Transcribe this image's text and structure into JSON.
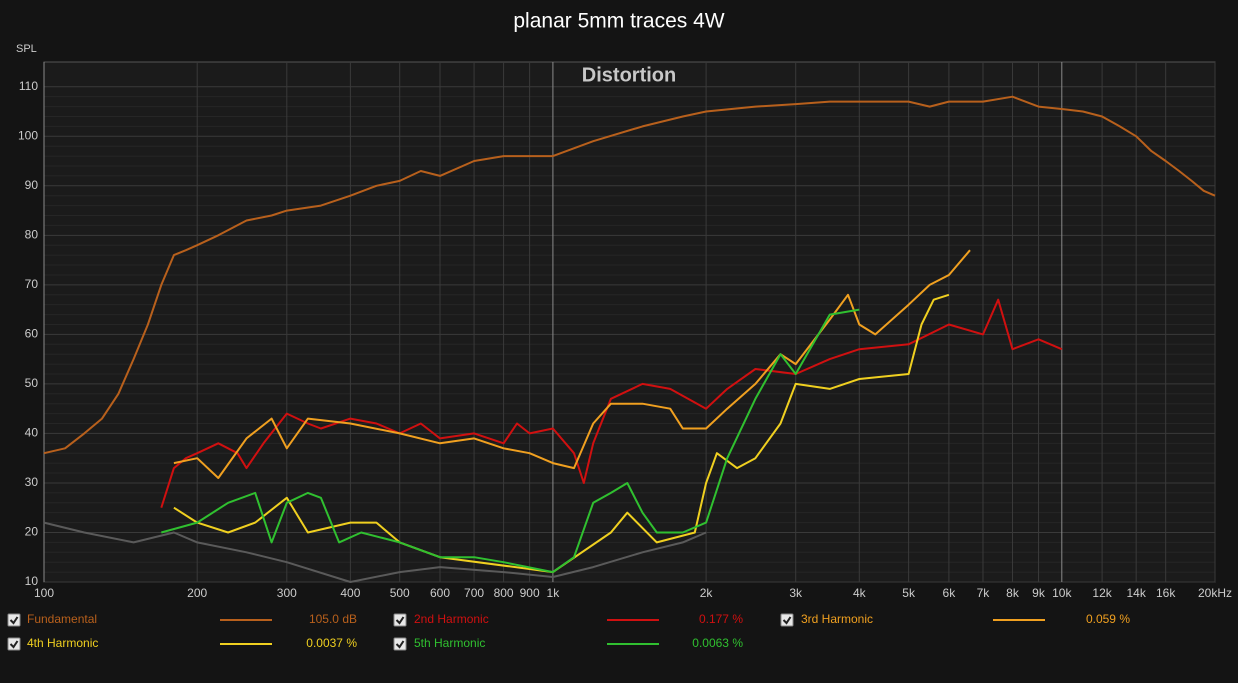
{
  "chart_data": {
    "type": "line",
    "title": "planar 5mm traces 4W",
    "annotation": "Distortion",
    "y_label": "SPL",
    "log_x": true,
    "grid": true,
    "xlim": [
      100,
      20000
    ],
    "ylim": [
      10,
      115
    ],
    "xticks": [
      100,
      200,
      300,
      400,
      500,
      600,
      700,
      800,
      900,
      {
        "value": 1000,
        "label": "1k"
      },
      {
        "value": 2000,
        "label": "2k"
      },
      {
        "value": 3000,
        "label": "3k"
      },
      {
        "value": 4000,
        "label": "4k"
      },
      {
        "value": 5000,
        "label": "5k"
      },
      {
        "value": 6000,
        "label": "6k"
      },
      {
        "value": 7000,
        "label": "7k"
      },
      {
        "value": 8000,
        "label": "8k"
      },
      {
        "value": 9000,
        "label": "9k"
      },
      {
        "value": 10000,
        "label": "10k"
      },
      {
        "value": 12000,
        "label": "12k"
      },
      {
        "value": 14000,
        "label": "14k"
      },
      {
        "value": 16000,
        "label": "16k"
      },
      {
        "value": 20000,
        "label": "20kHz"
      }
    ],
    "yticks": [
      10,
      20,
      30,
      40,
      50,
      60,
      70,
      80,
      90,
      100,
      110
    ],
    "series": [
      {
        "name": "Fundamental",
        "legend_value": "105.0 dB",
        "color": "#b8601c",
        "x": [
          100,
          110,
          120,
          130,
          140,
          150,
          160,
          170,
          180,
          190,
          200,
          220,
          250,
          280,
          300,
          350,
          400,
          450,
          500,
          550,
          600,
          700,
          800,
          900,
          1000,
          1200,
          1500,
          1800,
          2000,
          2500,
          3000,
          3500,
          4000,
          5000,
          5500,
          6000,
          7000,
          8000,
          9000,
          10000,
          11000,
          12000,
          13000,
          14000,
          15000,
          16000,
          17000,
          18000,
          19000,
          20000
        ],
        "values": [
          36,
          37,
          40,
          43,
          48,
          55,
          62,
          70,
          76,
          77,
          78,
          80,
          83,
          84,
          85,
          86,
          88,
          90,
          91,
          93,
          92,
          95,
          96,
          96,
          96,
          99,
          102,
          104,
          105,
          106,
          106.5,
          107,
          107,
          107,
          106,
          107,
          107,
          108,
          106,
          105.5,
          105,
          104,
          102,
          100,
          97,
          95,
          93,
          91,
          89,
          88
        ]
      },
      {
        "name": "2nd Harmonic",
        "legend_value": "0.177 %",
        "color": "#d01010",
        "x": [
          170,
          180,
          190,
          200,
          220,
          240,
          250,
          270,
          300,
          330,
          350,
          400,
          450,
          500,
          550,
          600,
          700,
          800,
          850,
          900,
          1000,
          1100,
          1150,
          1200,
          1300,
          1500,
          1700,
          2000,
          2200,
          2500,
          3000,
          3500,
          4000,
          5000,
          6000,
          7000,
          7500,
          8000,
          9000,
          10000
        ],
        "values": [
          25,
          33,
          35,
          36,
          38,
          36,
          33,
          38,
          44,
          42,
          41,
          43,
          42,
          40,
          42,
          39,
          40,
          38,
          42,
          40,
          41,
          36,
          30,
          38,
          47,
          50,
          49,
          45,
          49,
          53,
          52,
          55,
          57,
          58,
          62,
          60,
          67,
          57,
          59,
          57
        ]
      },
      {
        "name": "3rd Harmonic",
        "legend_value": "0.059 %",
        "color": "#f0a020",
        "x": [
          180,
          200,
          220,
          250,
          280,
          300,
          330,
          400,
          500,
          600,
          700,
          800,
          900,
          1000,
          1100,
          1200,
          1300,
          1500,
          1700,
          1800,
          2000,
          2200,
          2500,
          2800,
          3000,
          3500,
          3800,
          4000,
          4300,
          5000,
          5500,
          6000,
          6600
        ],
        "values": [
          34,
          35,
          31,
          39,
          43,
          37,
          43,
          42,
          40,
          38,
          39,
          37,
          36,
          34,
          33,
          42,
          46,
          46,
          45,
          41,
          41,
          45,
          50,
          56,
          54,
          63,
          68,
          62,
          60,
          66,
          70,
          72,
          77
        ]
      },
      {
        "name": "4th Harmonic",
        "legend_value": "0.0037 %",
        "color": "#f0d020",
        "x": [
          180,
          200,
          230,
          260,
          300,
          330,
          400,
          450,
          500,
          600,
          1000,
          1300,
          1400,
          1600,
          1900,
          2000,
          2100,
          2300,
          2500,
          2800,
          3000,
          3500,
          4000,
          5000,
          5300,
          5600,
          6000
        ],
        "values": [
          25,
          22,
          20,
          22,
          27,
          20,
          22,
          22,
          18,
          15,
          12,
          20,
          24,
          18,
          20,
          30,
          36,
          33,
          35,
          42,
          50,
          49,
          51,
          52,
          62,
          67,
          68
        ]
      },
      {
        "name": "5th Harmonic",
        "legend_value": "0.0063 %",
        "color": "#30c030",
        "x": [
          170,
          200,
          230,
          260,
          280,
          300,
          330,
          350,
          380,
          420,
          500,
          600,
          700,
          800,
          1000,
          1100,
          1200,
          1300,
          1400,
          1500,
          1600,
          1800,
          2000,
          2200,
          2500,
          2800,
          3000,
          3500,
          4000
        ],
        "values": [
          20,
          22,
          26,
          28,
          18,
          26,
          28,
          27,
          18,
          20,
          18,
          15,
          15,
          14,
          12,
          15,
          26,
          28,
          30,
          24,
          20,
          20,
          22,
          35,
          47,
          56,
          52,
          64,
          65
        ]
      },
      {
        "color": "#5a5a5a",
        "x": [
          100,
          120,
          150,
          180,
          200,
          250,
          300,
          400,
          500,
          600,
          800,
          1000,
          1200,
          1500,
          1800,
          2000
        ],
        "values": [
          22,
          20,
          18,
          20,
          18,
          16,
          14,
          10,
          12,
          13,
          12,
          11,
          13,
          16,
          18,
          20
        ]
      }
    ]
  }
}
